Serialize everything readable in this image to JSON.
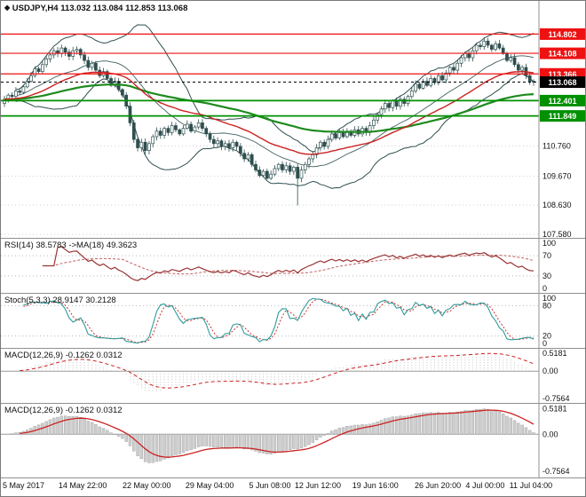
{
  "header": {
    "symbol": "USDJPY,H4",
    "ohlc": "113.032 113.084 112.853 113.068"
  },
  "colors": {
    "background": "#ffffff",
    "grid": "#cfcfcf",
    "separator": "#909090",
    "axis_text": "#111111",
    "candle": "#2f4f4f",
    "bollinger": "#2f4f4f",
    "ma_fast": "#cc2222",
    "ma_slow": "#1e8b1e",
    "resistance": "#ee1111",
    "support": "#009000",
    "current_tag": "#000000",
    "rsi_line": "#993333",
    "rsi_ma": "#c06060",
    "stoch_k": "#2e9b9b",
    "stoch_d": "#cc3333",
    "macd_signal": "#cc2222",
    "histogram_fill": "#cdcdcd",
    "histogram_stroke": "#9f9f9f",
    "level_dotted": "#b8b8b8"
  },
  "chart_data": {
    "type": "candlestick",
    "title": "USDJPY H4 candlestick chart with Bollinger Bands, red/green moving averages, horizontal support/resistance levels, RSI, Stochastic and two MACD panes",
    "symbol": "USDJPY",
    "timeframe": "H4",
    "x_labels": [
      {
        "label": "5 May 2017",
        "pos": 0.0
      },
      {
        "label": "14 May 22:00",
        "pos": 0.152
      },
      {
        "label": "22 May 00:00",
        "pos": 0.271
      },
      {
        "label": "29 May 04:00",
        "pos": 0.388
      },
      {
        "label": "5 Jun 08:00",
        "pos": 0.5
      },
      {
        "label": "12 Jun 12:00",
        "pos": 0.589
      },
      {
        "label": "19 Jun 16:00",
        "pos": 0.696
      },
      {
        "label": "26 Jun 20:00",
        "pos": 0.812
      },
      {
        "label": "4 Jul 00:00",
        "pos": 0.9
      },
      {
        "label": "11 Jul 04:00",
        "pos": 0.985
      }
    ],
    "main": {
      "y_range": [
        107.45,
        116.0
      ],
      "y_ticks": [
        110.76,
        109.67,
        108.63,
        107.58
      ],
      "first_open": 112.3,
      "closes": [
        112.45,
        112.6,
        112.55,
        112.75,
        112.7,
        112.9,
        113.1,
        113.3,
        113.55,
        113.45,
        113.7,
        113.9,
        114.05,
        114.2,
        114.1,
        114.3,
        114.15,
        114.0,
        114.2,
        114.25,
        114.05,
        113.85,
        113.6,
        113.75,
        113.5,
        113.3,
        113.45,
        113.2,
        112.95,
        113.1,
        112.8,
        112.6,
        112.2,
        111.6,
        111.0,
        110.7,
        110.9,
        110.6,
        110.85,
        111.1,
        111.3,
        111.15,
        111.4,
        111.25,
        111.5,
        111.35,
        111.2,
        111.4,
        111.55,
        111.3,
        111.45,
        111.6,
        111.4,
        111.2,
        111.0,
        110.85,
        110.95,
        110.75,
        110.85,
        110.7,
        110.9,
        110.75,
        110.5,
        110.3,
        110.45,
        110.1,
        109.9,
        109.7,
        109.85,
        109.6,
        109.75,
        109.95,
        110.1,
        109.9,
        110.05,
        109.85,
        110.0,
        109.6,
        109.9,
        110.1,
        110.3,
        110.45,
        110.7,
        110.9,
        110.75,
        111.0,
        111.2,
        111.05,
        111.25,
        111.1,
        111.3,
        111.15,
        111.35,
        111.2,
        111.4,
        111.25,
        111.5,
        111.7,
        111.9,
        112.1,
        112.3,
        112.15,
        112.4,
        112.2,
        112.45,
        112.3,
        112.55,
        112.75,
        113.0,
        112.85,
        113.1,
        112.95,
        113.2,
        113.05,
        113.3,
        113.15,
        113.4,
        113.6,
        113.5,
        113.75,
        113.95,
        114.1,
        113.95,
        114.2,
        114.4,
        114.35,
        114.55,
        114.4,
        114.25,
        114.45,
        114.3,
        114.1,
        113.85,
        113.95,
        113.7,
        113.5,
        113.6,
        113.3,
        113.1,
        113.07
      ],
      "spike": {
        "index": 77,
        "low": 108.62
      },
      "levels": [
        {
          "price": 114.802,
          "color": "#ee1111",
          "width": 1.2,
          "dashed": false,
          "kind": "resistance"
        },
        {
          "price": 114.108,
          "color": "#ee1111",
          "width": 1.2,
          "dashed": false,
          "kind": "resistance"
        },
        {
          "price": 113.366,
          "color": "#ee1111",
          "width": 1.2,
          "dashed": false,
          "kind": "resistance"
        },
        {
          "price": 113.068,
          "color": "#000000",
          "width": 1.0,
          "dashed": true,
          "kind": "current-price"
        },
        {
          "price": 112.401,
          "color": "#009000",
          "width": 1.8,
          "dashed": false,
          "kind": "support"
        },
        {
          "price": 111.849,
          "color": "#009000",
          "width": 1.8,
          "dashed": false,
          "kind": "support"
        }
      ],
      "overlays": {
        "bollinger_period": 20,
        "ma_fast_period": 34,
        "ma_slow_period": 89
      }
    },
    "panes": [
      {
        "id": "rsi",
        "label": "RSI(14) 38.5783 ->MA(18) 49.3623",
        "current": 38.5783,
        "ma": 49.3623,
        "levels": [
          70,
          30
        ],
        "ticks": [
          {
            "label": "100",
            "v": 100
          },
          {
            "label": "70",
            "v": 70
          },
          {
            "label": "30",
            "v": 30
          },
          {
            "label": "0",
            "v": 0
          }
        ]
      },
      {
        "id": "stoch",
        "label": "Stoch(5,3,3) 28.9147 30.2128",
        "current": 28.9147,
        "signal": 30.2128,
        "levels": [
          80,
          20
        ],
        "ticks": [
          {
            "label": "100",
            "v": 100
          },
          {
            "label": "80",
            "v": 80
          },
          {
            "label": "20",
            "v": 20
          },
          {
            "label": "0",
            "v": 0
          }
        ]
      },
      {
        "id": "macd1",
        "label": "MACD(12,26,9) -0.1262 0.0312",
        "current": -0.1262,
        "signal": 0.0312,
        "ticks": [
          {
            "label": "0.5181",
            "v": 0.5181
          },
          {
            "label": "0.00",
            "v": 0
          },
          {
            "label": "-0.7564",
            "v": -0.7564
          }
        ]
      },
      {
        "id": "macd2",
        "label": "MACD(12,26,9) -0.1262 0.0312",
        "current": -0.1262,
        "signal": 0.0312,
        "ticks": [
          {
            "label": "0.5181",
            "v": 0.5181
          },
          {
            "label": "0.00",
            "v": 0
          },
          {
            "label": "-0.7564",
            "v": -0.7564
          }
        ]
      }
    ]
  }
}
